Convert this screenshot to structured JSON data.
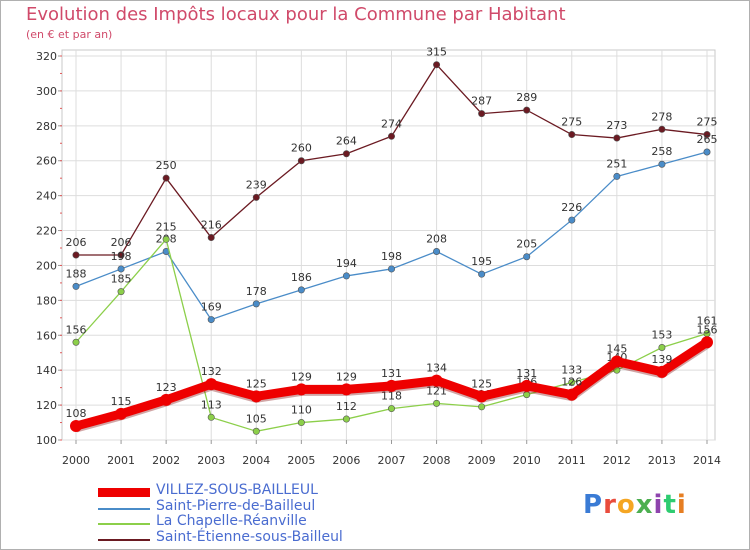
{
  "header": {
    "title": "Evolution des Impôts locaux pour la Commune par Habitant",
    "subtitle": "(en € et par an)"
  },
  "logo": {
    "text": "Proxiti",
    "colors": [
      "#3a7bd5",
      "#e94c3d",
      "#f5a623",
      "#4caf50",
      "#8e44ad",
      "#2ecc71",
      "#e67e22"
    ]
  },
  "chart_data": {
    "type": "line",
    "x": [
      2000,
      2001,
      2002,
      2003,
      2004,
      2005,
      2006,
      2007,
      2008,
      2009,
      2010,
      2011,
      2012,
      2013,
      2014
    ],
    "ylim": [
      100,
      320
    ],
    "yticks": [
      100,
      120,
      140,
      160,
      180,
      200,
      220,
      240,
      260,
      280,
      300,
      320
    ],
    "grid": true,
    "legend_position": "bottom-left",
    "series": [
      {
        "name": "Saint-Étienne-sous-Bailleul",
        "color": "#6b1a22",
        "values": [
          206,
          206,
          250,
          216,
          239,
          260,
          264,
          274,
          315,
          287,
          289,
          275,
          273,
          278,
          275
        ],
        "labels": [
          "206",
          "206",
          "250",
          "216",
          "239",
          "260",
          "264",
          "274",
          "315",
          "287",
          "289",
          "275",
          "273",
          "278",
          "275"
        ]
      },
      {
        "name": "Saint-Pierre-de-Bailleul",
        "color": "#4a8cc8",
        "values": [
          188,
          198,
          208,
          169,
          178,
          186,
          194,
          198,
          208,
          195,
          205,
          226,
          251,
          258,
          265
        ],
        "labels": [
          "188",
          "198",
          "208",
          "169",
          "178",
          "186",
          "194",
          "198",
          "208",
          "195",
          "205",
          "226",
          "251",
          "258",
          "265"
        ]
      },
      {
        "name": "La Chapelle-Réanville",
        "color": "#8ccf4a",
        "values": [
          156,
          185,
          215,
          113,
          105,
          110,
          112,
          118,
          121,
          119,
          126,
          133,
          140,
          153,
          161
        ],
        "labels": [
          "156",
          "185",
          "215",
          "113",
          "105",
          "110",
          "112",
          "118",
          "121",
          "119",
          "126",
          "133",
          "140",
          "153",
          "161"
        ]
      },
      {
        "name": "VILLEZ-SOUS-BAILLEUL",
        "color": "#ee0000",
        "values": [
          108,
          115,
          123,
          132,
          125,
          129,
          129,
          131,
          134,
          125,
          131,
          126,
          145,
          139,
          156
        ],
        "labels": [
          "108",
          "115",
          "123",
          "132",
          "125",
          "129",
          "129",
          "131",
          "134",
          "125",
          "131",
          "126",
          "145",
          "139",
          "156"
        ]
      }
    ]
  },
  "legend": [
    {
      "label": "VILLEZ-SOUS-BAILLEUL",
      "color": "#ee0000",
      "thick": true
    },
    {
      "label": "Saint-Pierre-de-Bailleul",
      "color": "#4a8cc8",
      "thick": false
    },
    {
      "label": "La Chapelle-Réanville",
      "color": "#8ccf4a",
      "thick": false
    },
    {
      "label": "Saint-Étienne-sous-Bailleul",
      "color": "#6b1a22",
      "thick": false
    }
  ]
}
